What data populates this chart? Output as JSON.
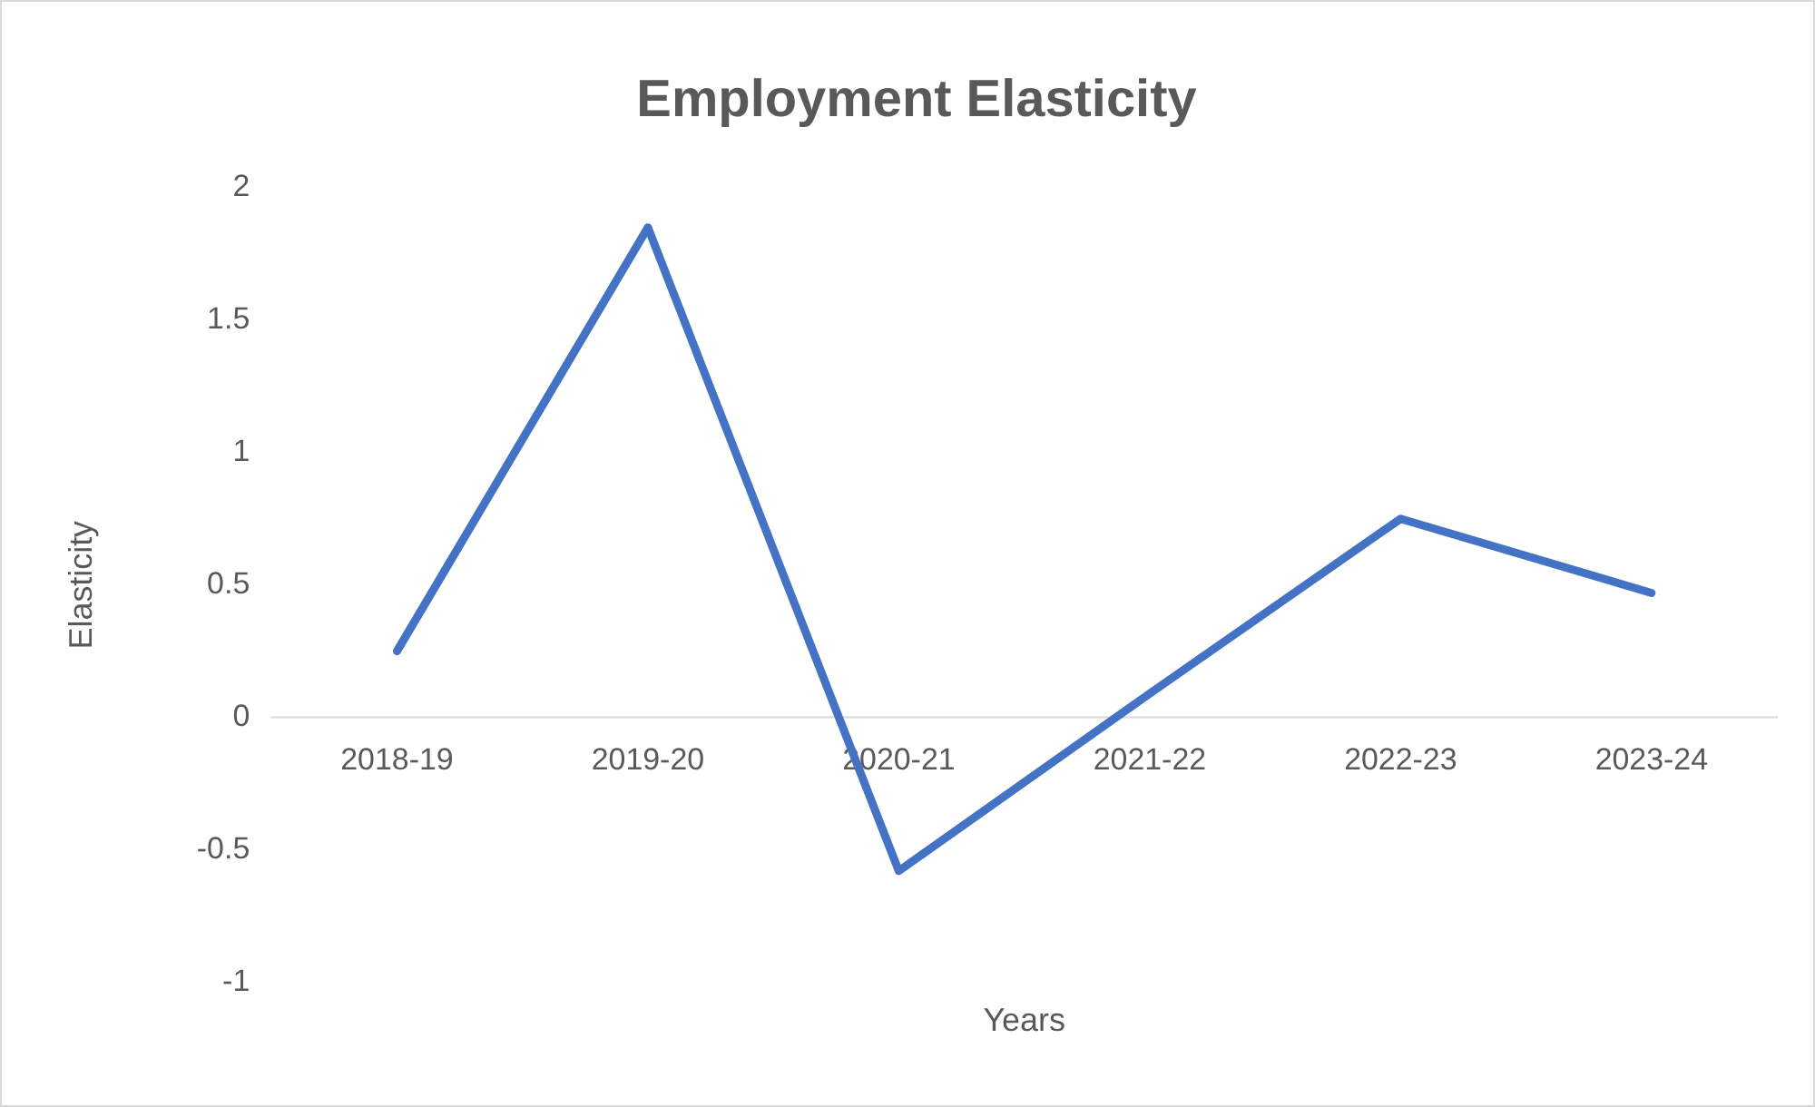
{
  "chart_data": {
    "type": "line",
    "title": "Employment Elasticity",
    "xlabel": "Years",
    "ylabel": "Elasticity",
    "categories": [
      "2018-19",
      "2019-20",
      "2020-21",
      "2021-22",
      "2022-23",
      "2023-24"
    ],
    "series": [
      {
        "color": "#4472c4",
        "values": [
          0.25,
          1.85,
          -0.58,
          0.09,
          0.75,
          0.47
        ]
      }
    ],
    "ylim": [
      -1,
      2
    ],
    "yticks": [
      -1,
      -0.5,
      0,
      0.5,
      1,
      1.5,
      2
    ],
    "grid": false,
    "legend": false,
    "marker": "none",
    "line_style": "solid"
  }
}
